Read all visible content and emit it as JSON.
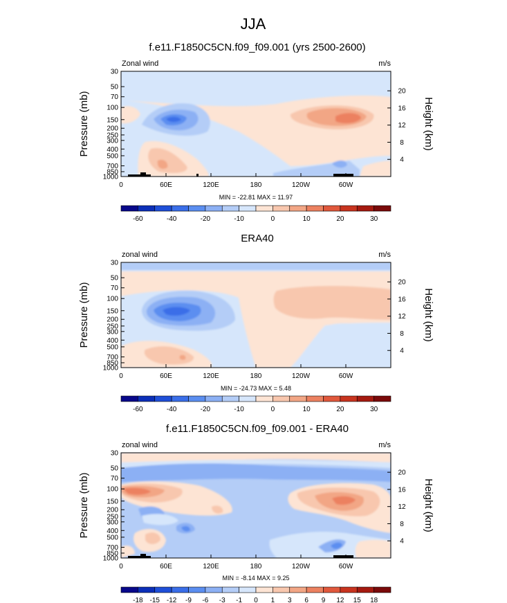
{
  "page": {
    "title": "JJA"
  },
  "panels": [
    {
      "title": "f.e11.F1850C5CN.f09_f09.001 (yrs 2500-2600)",
      "left_label": "Zonal wind",
      "right_label": "m/s",
      "stats": "MIN = -22.81  MAX = 11.97",
      "colorbar_labels": [
        "-60",
        "-40",
        "-20",
        "-10",
        "0",
        "10",
        "20",
        "30"
      ]
    },
    {
      "title": "ERA40",
      "left_label": "zonal wind",
      "right_label": "m/s",
      "stats": "MIN = -24.73  MAX =  5.48",
      "colorbar_labels": [
        "-60",
        "-40",
        "-20",
        "-10",
        "0",
        "10",
        "20",
        "30"
      ]
    },
    {
      "title": "f.e11.F1850C5CN.f09_f09.001 - ERA40",
      "left_label": "zonal wind",
      "right_label": "m/s",
      "stats": "MIN = -8.14  MAX =  9.25",
      "colorbar_labels": [
        "-18",
        "-15",
        "-12",
        "-9",
        "-6",
        "-3",
        "-1",
        "0",
        "1",
        "3",
        "6",
        "9",
        "12",
        "15",
        "18"
      ]
    }
  ],
  "axes": {
    "ylabel": "Pressure (mb)",
    "y2label": "Height (km)",
    "pressure_ticks": [
      "30",
      "50",
      "70",
      "100",
      "150",
      "200",
      "250",
      "300",
      "400",
      "500",
      "700",
      "850",
      "1000"
    ],
    "height_ticks": [
      "20",
      "16",
      "12",
      "8",
      "4"
    ],
    "lon_ticks": [
      "0",
      "60E",
      "120E",
      "180",
      "120W",
      "60W"
    ]
  },
  "colors": {
    "palette_full": [
      "#08088a",
      "#0c2fb8",
      "#1f4fd8",
      "#3a6ee8",
      "#5b8ef0",
      "#8cb0f4",
      "#b4cdf7",
      "#d6e6fb",
      "#fde4d4",
      "#f8c7ae",
      "#f2a685",
      "#ec8160",
      "#e0583c",
      "#c8341f",
      "#a51a10",
      "#7a0a0a"
    ],
    "palette_diff": [
      "#08088a",
      "#0c2fb8",
      "#1f4fd8",
      "#3a6ee8",
      "#5b8ef0",
      "#8cb0f4",
      "#b4cdf7",
      "#d6e6fb",
      "#fde4d4",
      "#f8c7ae",
      "#f2a685",
      "#ec8160",
      "#e0583c",
      "#c8341f",
      "#a51a10",
      "#7a0a0a"
    ]
  },
  "chart_data": [
    {
      "type": "heatmap",
      "title": "f.e11.F1850C5CN.f09_f09.001 (yrs 2500-2600)",
      "variable": "Zonal wind",
      "units": "m/s",
      "xlabel": "",
      "ylabel": "Pressure (mb)",
      "y2label": "Height (km)",
      "x": [
        "0",
        "60E",
        "120E",
        "180",
        "120W",
        "60W"
      ],
      "y": [
        30,
        50,
        70,
        100,
        150,
        200,
        250,
        300,
        400,
        500,
        700,
        850,
        1000
      ],
      "y_scale": "log",
      "levels": [
        -70,
        -60,
        -50,
        -40,
        -30,
        -20,
        -15,
        -10,
        -5,
        0,
        5,
        10,
        15,
        20,
        25,
        30,
        35
      ],
      "min": -22.81,
      "max": 11.97
    },
    {
      "type": "heatmap",
      "title": "ERA40",
      "variable": "zonal wind",
      "units": "m/s",
      "xlabel": "",
      "ylabel": "Pressure (mb)",
      "y2label": "Height (km)",
      "x": [
        "0",
        "60E",
        "120E",
        "180",
        "120W",
        "60W"
      ],
      "y": [
        30,
        50,
        70,
        100,
        150,
        200,
        250,
        300,
        400,
        500,
        700,
        850,
        1000
      ],
      "y_scale": "log",
      "levels": [
        -70,
        -60,
        -50,
        -40,
        -30,
        -20,
        -15,
        -10,
        -5,
        0,
        5,
        10,
        15,
        20,
        25,
        30,
        35
      ],
      "min": -24.73,
      "max": 5.48
    },
    {
      "type": "heatmap",
      "title": "f.e11.F1850C5CN.f09_f09.001 - ERA40",
      "variable": "zonal wind",
      "units": "m/s",
      "xlabel": "",
      "ylabel": "Pressure (mb)",
      "y2label": "Height (km)",
      "x": [
        "0",
        "60E",
        "120E",
        "180",
        "120W",
        "60W"
      ],
      "y": [
        30,
        50,
        70,
        100,
        150,
        200,
        250,
        300,
        400,
        500,
        700,
        850,
        1000
      ],
      "y_scale": "log",
      "levels": [
        -18,
        -15,
        -12,
        -9,
        -6,
        -3,
        -1,
        0,
        1,
        3,
        6,
        9,
        12,
        15,
        18
      ],
      "min": -8.14,
      "max": 9.25
    }
  ]
}
